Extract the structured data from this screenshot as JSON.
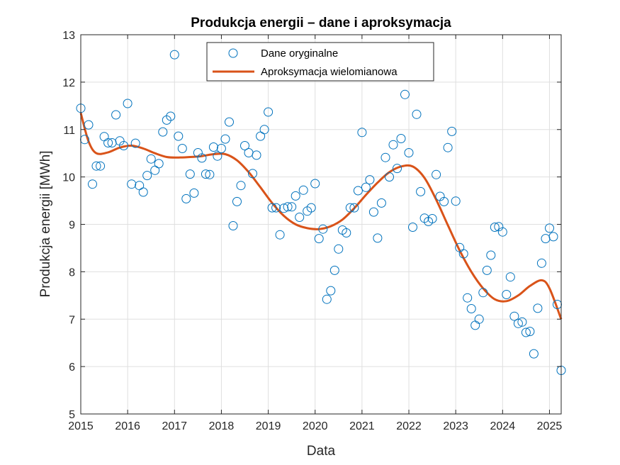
{
  "chart_data": {
    "type": "scatter",
    "title": "Produkcja energii – dane i aproksymacja",
    "xlabel": "Data",
    "ylabel": "Produkcja energii [MWh]",
    "xlim": [
      "2015-01",
      "2025-04"
    ],
    "ylim": [
      5,
      13
    ],
    "x_ticks": [
      "2015",
      "2016",
      "2017",
      "2018",
      "2019",
      "2020",
      "2021",
      "2022",
      "2023",
      "2024",
      "2025"
    ],
    "y_ticks": [
      5,
      6,
      7,
      8,
      9,
      10,
      11,
      12,
      13
    ],
    "grid": true,
    "legend_position": "top-center",
    "colors": {
      "points": "#0072BD",
      "fit": "#D95319"
    },
    "series": [
      {
        "name": "Dane oryginalne",
        "kind": "markers",
        "x": [
          "2015-01",
          "2015-02",
          "2015-03",
          "2015-04",
          "2015-05",
          "2015-06",
          "2015-07",
          "2015-08",
          "2015-09",
          "2015-10",
          "2015-11",
          "2015-12",
          "2016-01",
          "2016-02",
          "2016-03",
          "2016-04",
          "2016-05",
          "2016-06",
          "2016-07",
          "2016-08",
          "2016-09",
          "2016-10",
          "2016-11",
          "2016-12",
          "2017-01",
          "2017-02",
          "2017-03",
          "2017-04",
          "2017-05",
          "2017-06",
          "2017-07",
          "2017-08",
          "2017-09",
          "2017-10",
          "2017-11",
          "2017-12",
          "2018-01",
          "2018-02",
          "2018-03",
          "2018-04",
          "2018-05",
          "2018-06",
          "2018-07",
          "2018-08",
          "2018-09",
          "2018-10",
          "2018-11",
          "2018-12",
          "2019-01",
          "2019-02",
          "2019-03",
          "2019-04",
          "2019-05",
          "2019-06",
          "2019-07",
          "2019-08",
          "2019-09",
          "2019-10",
          "2019-11",
          "2019-12",
          "2020-01",
          "2020-02",
          "2020-03",
          "2020-04",
          "2020-05",
          "2020-06",
          "2020-07",
          "2020-08",
          "2020-09",
          "2020-10",
          "2020-11",
          "2020-12",
          "2021-01",
          "2021-02",
          "2021-03",
          "2021-04",
          "2021-05",
          "2021-06",
          "2021-07",
          "2021-08",
          "2021-09",
          "2021-10",
          "2021-11",
          "2021-12",
          "2022-01",
          "2022-02",
          "2022-03",
          "2022-04",
          "2022-05",
          "2022-06",
          "2022-07",
          "2022-08",
          "2022-09",
          "2022-10",
          "2022-11",
          "2022-12",
          "2023-01",
          "2023-02",
          "2023-03",
          "2023-04",
          "2023-05",
          "2023-06",
          "2023-07",
          "2023-08",
          "2023-09",
          "2023-10",
          "2023-11",
          "2023-12",
          "2024-01",
          "2024-02",
          "2024-03",
          "2024-04",
          "2024-05",
          "2024-06",
          "2024-07",
          "2024-08",
          "2024-09",
          "2024-10",
          "2024-11",
          "2024-12",
          "2025-01",
          "2025-02",
          "2025-03",
          "2025-04"
        ],
        "y": [
          11.45,
          10.79,
          11.1,
          9.85,
          10.23,
          10.23,
          10.85,
          10.72,
          10.72,
          11.31,
          10.76,
          10.66,
          11.55,
          9.85,
          10.71,
          9.82,
          9.68,
          10.03,
          10.38,
          10.14,
          10.28,
          10.95,
          11.2,
          11.28,
          12.58,
          10.86,
          10.6,
          9.54,
          10.06,
          9.66,
          10.51,
          10.4,
          10.06,
          10.05,
          10.63,
          10.44,
          10.6,
          10.8,
          11.16,
          8.97,
          9.48,
          9.82,
          10.66,
          10.51,
          10.07,
          10.46,
          10.86,
          11.0,
          11.37,
          9.35,
          9.35,
          8.78,
          9.34,
          9.37,
          9.37,
          9.6,
          9.15,
          9.72,
          9.28,
          9.35,
          9.86,
          8.7,
          8.9,
          7.42,
          7.6,
          8.03,
          8.48,
          8.88,
          8.82,
          9.35,
          9.35,
          9.71,
          10.94,
          9.78,
          9.94,
          9.26,
          8.71,
          9.45,
          10.41,
          10.0,
          10.68,
          10.18,
          10.81,
          11.74,
          10.51,
          8.94,
          11.32,
          9.69,
          9.13,
          9.06,
          9.12,
          10.05,
          9.59,
          9.48,
          10.62,
          10.96,
          9.49,
          8.51,
          8.38,
          7.45,
          7.22,
          6.87,
          7.0,
          7.56,
          8.03,
          8.35,
          8.94,
          8.95,
          8.84,
          7.52,
          7.89,
          7.06,
          6.91,
          6.94,
          6.72,
          6.74,
          6.27,
          7.23,
          8.18,
          8.7,
          8.92,
          8.74,
          7.31,
          5.92
        ]
      },
      {
        "name": "Aproksymacja wielomianowa",
        "kind": "line",
        "x": [
          "2015-01",
          "2015-03",
          "2015-05",
          "2015-08",
          "2015-11",
          "2016-02",
          "2016-05",
          "2016-08",
          "2016-11",
          "2017-02",
          "2017-05",
          "2017-08",
          "2017-11",
          "2018-02",
          "2018-05",
          "2018-08",
          "2018-11",
          "2019-02",
          "2019-05",
          "2019-08",
          "2019-11",
          "2020-02",
          "2020-05",
          "2020-08",
          "2020-11",
          "2021-02",
          "2021-05",
          "2021-08",
          "2021-11",
          "2022-02",
          "2022-05",
          "2022-08",
          "2022-11",
          "2023-02",
          "2023-05",
          "2023-08",
          "2023-11",
          "2024-02",
          "2024-05",
          "2024-08",
          "2024-11",
          "2025-01",
          "2025-04"
        ],
        "y": [
          11.35,
          10.75,
          10.5,
          10.52,
          10.62,
          10.66,
          10.6,
          10.5,
          10.42,
          10.41,
          10.42,
          10.44,
          10.48,
          10.48,
          10.35,
          10.1,
          9.78,
          9.45,
          9.18,
          9.0,
          8.92,
          8.9,
          8.96,
          9.1,
          9.34,
          9.62,
          9.88,
          10.1,
          10.22,
          10.22,
          9.98,
          9.52,
          8.98,
          8.45,
          8.0,
          7.65,
          7.42,
          7.38,
          7.5,
          7.7,
          7.82,
          7.65,
          7.0
        ]
      }
    ]
  }
}
